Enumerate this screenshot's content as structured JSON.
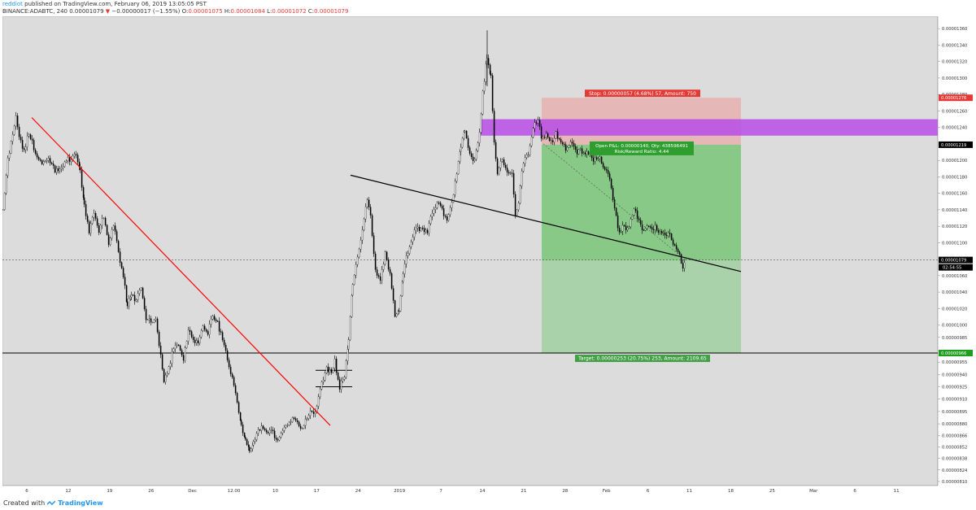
{
  "header": {
    "author": "reddiot",
    "published": "published on TradingView.com, February 06, 2019 13:05:05 PST",
    "symbol": "BINANCE:ADABTC, 240",
    "last": "0.00001079",
    "arrow": "▼",
    "change": "−0.00000017 (−1.55%)",
    "o_label": "O:",
    "o": "0.00001075",
    "h_label": "H:",
    "h": "0.00001084",
    "l_label": "L:",
    "l": "0.00001072",
    "c_label": "C:",
    "c": "0.00001079"
  },
  "footer": {
    "created_with": "Created with",
    "brand": "TradingView"
  },
  "colors": {
    "chart_bg": "#dcdcdc",
    "candles": "#000000",
    "red_line": "#ff0000",
    "stop_zone": "#e6b3b3",
    "target_zone": "#8fcc8f",
    "purple_band": "#b84de8",
    "stop_label": "#e53935",
    "target_label": "#43a047"
  },
  "chart_data": {
    "type": "candlestick",
    "symbol": "BINANCE:ADABTC",
    "interval": "240",
    "ylim": [
      8.05e-06,
      1.375e-05
    ],
    "y_ticks": [
      "0.00001360",
      "0.00001340",
      "0.00001320",
      "0.00001300",
      "0.00001280",
      "0.00001260",
      "0.00001240",
      "0.00001200",
      "0.00001180",
      "0.00001160",
      "0.00001140",
      "0.00001120",
      "0.00001100",
      "0.00001060",
      "0.00001040",
      "0.00001020",
      "0.00001000",
      "0.00000985",
      "0.00000955",
      "0.00000940",
      "0.00000925",
      "0.00000910",
      "0.00000895",
      "0.00000880",
      "0.00000866",
      "0.00000852",
      "0.00000838",
      "0.00000824",
      "0.00000810"
    ],
    "x_ticks": [
      "6",
      "12",
      "19",
      "26",
      "Dec",
      "12.00",
      "10",
      "17",
      "24",
      "2019",
      "7",
      "14",
      "21",
      "28",
      "Feb",
      "6",
      "11",
      "18",
      "25",
      "Mar",
      "6",
      "11"
    ],
    "close_path": [
      [
        0,
        1.14e-05
      ],
      [
        6,
        1.2e-05
      ],
      [
        12,
        1.235e-05
      ],
      [
        16,
        1.25e-05
      ],
      [
        20,
        1.225e-05
      ],
      [
        26,
        1.215e-05
      ],
      [
        32,
        1.23e-05
      ],
      [
        40,
        1.21e-05
      ],
      [
        48,
        1.195e-05
      ],
      [
        56,
        1.205e-05
      ],
      [
        64,
        1.185e-05
      ],
      [
        72,
        1.195e-05
      ],
      [
        80,
        1.2e-05
      ],
      [
        88,
        1.21e-05
      ],
      [
        95,
        1.185e-05
      ],
      [
        100,
        1.15e-05
      ],
      [
        106,
        1.11e-05
      ],
      [
        112,
        1.14e-05
      ],
      [
        118,
        1.115e-05
      ],
      [
        124,
        1.13e-05
      ],
      [
        130,
        1.1e-05
      ],
      [
        136,
        1.12e-05
      ],
      [
        142,
        1.09e-05
      ],
      [
        148,
        1.06e-05
      ],
      [
        153,
        1.02e-05
      ],
      [
        158,
        1.04e-05
      ],
      [
        164,
        1.03e-05
      ],
      [
        170,
        1.045e-05
      ],
      [
        176,
        1.01e-05
      ],
      [
        182,
        1e-05
      ],
      [
        188,
        1.01e-05
      ],
      [
        194,
        9.6e-06
      ],
      [
        198,
        9.3e-06
      ],
      [
        204,
        9.5e-06
      ],
      [
        210,
        9.7e-06
      ],
      [
        216,
        9.75e-06
      ],
      [
        222,
        9.6e-06
      ],
      [
        228,
        9.9e-06
      ],
      [
        234,
        9.85e-06
      ],
      [
        240,
        9.75e-06
      ],
      [
        246,
        1e-05
      ],
      [
        252,
        9.9e-06
      ],
      [
        258,
        1.01e-05
      ],
      [
        264,
        1.005e-05
      ],
      [
        270,
        9.8e-06
      ],
      [
        276,
        9.6e-06
      ],
      [
        282,
        9.35e-06
      ],
      [
        288,
        9.05e-06
      ],
      [
        293,
        8.8e-06
      ],
      [
        298,
        8.6e-06
      ],
      [
        303,
        8.45e-06
      ],
      [
        308,
        8.6e-06
      ],
      [
        314,
        8.7e-06
      ],
      [
        320,
        8.75e-06
      ],
      [
        326,
        8.7e-06
      ],
      [
        332,
        8.68e-06
      ],
      [
        338,
        8.62e-06
      ],
      [
        344,
        8.7e-06
      ],
      [
        350,
        8.8e-06
      ],
      [
        356,
        8.88e-06
      ],
      [
        362,
        8.8e-06
      ],
      [
        368,
        8.75e-06
      ],
      [
        374,
        8.85e-06
      ],
      [
        380,
        8.95e-06
      ],
      [
        386,
        9e-06
      ],
      [
        392,
        9.3e-06
      ],
      [
        398,
        9.5e-06
      ],
      [
        404,
        9.4e-06
      ],
      [
        408,
        9.55e-06
      ],
      [
        414,
        9.25e-06
      ],
      [
        420,
        9.35e-06
      ],
      [
        425,
        9.85e-06
      ],
      [
        430,
        1.05e-05
      ],
      [
        436,
        1.08e-05
      ],
      [
        442,
        1.12e-05
      ],
      [
        448,
        1.15e-05
      ],
      [
        452,
        1.13e-05
      ],
      [
        458,
        1.07e-05
      ],
      [
        464,
        1.05e-05
      ],
      [
        470,
        1.09e-05
      ],
      [
        476,
        1.06e-05
      ],
      [
        482,
        1.01e-05
      ],
      [
        487,
        1.02e-05
      ],
      [
        492,
        1.06e-05
      ],
      [
        498,
        1.09e-05
      ],
      [
        504,
        1.11e-05
      ],
      [
        510,
        1.115e-05
      ],
      [
        516,
        1.12e-05
      ],
      [
        522,
        1.11e-05
      ],
      [
        528,
        1.14e-05
      ],
      [
        534,
        1.15e-05
      ],
      [
        540,
        1.14e-05
      ],
      [
        546,
        1.13e-05
      ],
      [
        552,
        1.145e-05
      ],
      [
        558,
        1.185e-05
      ],
      [
        563,
        1.22e-05
      ],
      [
        568,
        1.235e-05
      ],
      [
        574,
        1.21e-05
      ],
      [
        580,
        1.2e-05
      ],
      [
        586,
        1.23e-05
      ],
      [
        590,
        1.285e-05
      ],
      [
        595,
        1.32e-05
      ],
      [
        600,
        1.3e-05
      ],
      [
        604,
        1.225e-05
      ],
      [
        608,
        1.185e-05
      ],
      [
        614,
        1.2e-05
      ],
      [
        620,
        1.19e-05
      ],
      [
        626,
        1.18e-05
      ],
      [
        630,
        1.13e-05
      ],
      [
        634,
        1.15e-05
      ],
      [
        638,
        1.19e-05
      ],
      [
        642,
        1.2e-05
      ],
      [
        646,
        1.21e-05
      ],
      [
        652,
        1.24e-05
      ],
      [
        658,
        1.245e-05
      ],
      [
        662,
        1.23e-05
      ],
      [
        668,
        1.23e-05
      ],
      [
        674,
        1.22e-05
      ],
      [
        680,
        1.235e-05
      ],
      [
        686,
        1.22e-05
      ],
      [
        692,
        1.215e-05
      ],
      [
        698,
        1.22e-05
      ],
      [
        704,
        1.21e-05
      ],
      [
        710,
        1.215e-05
      ],
      [
        716,
        1.205e-05
      ],
      [
        722,
        1.21e-05
      ],
      [
        728,
        1.2e-05
      ],
      [
        734,
        1.2e-05
      ],
      [
        740,
        1.19e-05
      ],
      [
        746,
        1.175e-05
      ],
      [
        752,
        1.145e-05
      ],
      [
        758,
        1.11e-05
      ],
      [
        764,
        1.12e-05
      ],
      [
        770,
        1.12e-05
      ],
      [
        776,
        1.14e-05
      ],
      [
        782,
        1.13e-05
      ],
      [
        788,
        1.115e-05
      ],
      [
        794,
        1.12e-05
      ],
      [
        800,
        1.12e-05
      ],
      [
        806,
        1.11e-05
      ],
      [
        812,
        1.115e-05
      ],
      [
        818,
        1.11e-05
      ],
      [
        824,
        1.1e-05
      ],
      [
        828,
        1.095e-05
      ],
      [
        832,
        1.085e-05
      ],
      [
        836,
        1.065e-05
      ],
      [
        840,
        1.079e-05
      ]
    ],
    "current_price": "0.00001079",
    "countdown": "02:54:55",
    "stop_price": "0.00001276",
    "entry_price": "0.00001219",
    "target_price": "0.00000966",
    "position": {
      "stop_text": "Stop: 0.00000057 (4.68%) 57, Amount: 750",
      "open_pl_text": "Open P&L: 0.00000140, Qty: 438596491",
      "rr_text": "Risk/Reward Ratio: 4.44",
      "target_text": "Target: 0.00000253 (20.75%) 253, Amount: 2109.65"
    },
    "purple_band": [
      1.25e-05,
      1.23e-05
    ],
    "breakout_levels": [
      9.45e-06,
      9.25e-06
    ]
  }
}
